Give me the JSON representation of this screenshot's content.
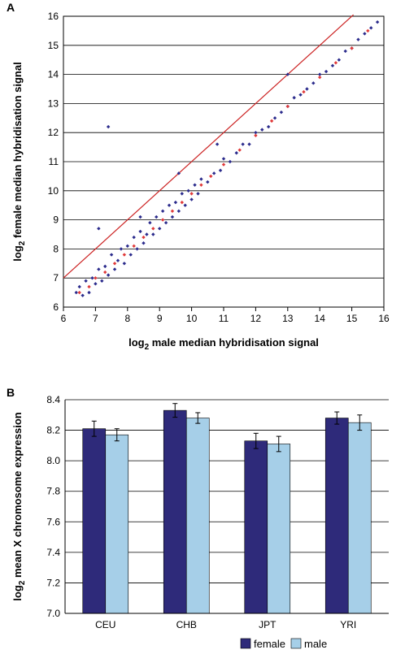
{
  "chart_data": [
    {
      "type": "scatter",
      "panel": "A",
      "xlabel": {
        "main": "log",
        "sub": "2",
        "rest": " male median hybridisation signal"
      },
      "ylabel": {
        "main": "log",
        "sub": "2",
        "rest": " female median hybridisation signal"
      },
      "xlim": [
        6,
        16
      ],
      "ylim": [
        6,
        16
      ],
      "xticks": [
        6,
        7,
        8,
        9,
        10,
        11,
        12,
        13,
        14,
        15,
        16
      ],
      "yticks": [
        6,
        7,
        8,
        9,
        10,
        11,
        12,
        13,
        14,
        15,
        16
      ],
      "grid": true,
      "reference_line": {
        "color": "#cc2222",
        "x": [
          6,
          15.05
        ],
        "y": [
          7,
          16.05
        ]
      },
      "series": [
        {
          "color": "#2b2b8c",
          "x": [
            6.4,
            6.5,
            6.6,
            6.7,
            6.8,
            6.9,
            7.0,
            7.1,
            7.2,
            7.3,
            7.4,
            7.5,
            7.6,
            7.7,
            7.8,
            7.9,
            8.0,
            8.1,
            8.2,
            8.3,
            8.4,
            8.5,
            8.6,
            8.7,
            8.8,
            8.9,
            9.0,
            9.1,
            9.2,
            9.3,
            9.4,
            9.5,
            9.6,
            9.7,
            9.8,
            9.9,
            10.0,
            10.1,
            10.2,
            10.3,
            10.5,
            10.7,
            10.9,
            11.0,
            11.2,
            11.4,
            11.6,
            11.8,
            12.0,
            12.2,
            12.4,
            12.6,
            12.8,
            13.0,
            13.2,
            13.4,
            13.6,
            13.8,
            14.0,
            14.2,
            14.4,
            14.6,
            14.8,
            15.0,
            15.2,
            15.4,
            15.6,
            15.8,
            7.4,
            7.1,
            8.4,
            9.6,
            10.8,
            13.0
          ],
          "values": [
            6.5,
            6.7,
            6.4,
            6.9,
            6.5,
            7.0,
            6.8,
            7.3,
            6.9,
            7.4,
            7.1,
            7.8,
            7.3,
            7.6,
            8.0,
            7.5,
            8.1,
            7.8,
            8.4,
            8.0,
            8.6,
            8.2,
            8.5,
            8.9,
            8.5,
            9.1,
            8.7,
            9.3,
            8.9,
            9.5,
            9.1,
            9.6,
            9.3,
            9.9,
            9.5,
            10.0,
            9.7,
            10.2,
            9.9,
            10.4,
            10.3,
            10.6,
            10.7,
            11.1,
            11.0,
            11.3,
            11.6,
            11.6,
            12.0,
            12.1,
            12.2,
            12.5,
            12.7,
            12.9,
            13.2,
            13.3,
            13.5,
            13.7,
            14.0,
            14.1,
            14.3,
            14.5,
            14.8,
            14.9,
            15.2,
            15.4,
            15.6,
            15.8,
            12.2,
            8.7,
            9.1,
            10.6,
            11.6,
            14.0
          ]
        },
        {
          "color": "#e03a3a",
          "x": [
            6.5,
            6.8,
            7.0,
            7.3,
            7.6,
            7.9,
            8.2,
            8.5,
            8.8,
            9.1,
            9.4,
            9.7,
            10.0,
            10.3,
            10.6,
            11.0,
            11.5,
            12.0,
            12.5,
            13.0,
            13.5,
            14.0,
            14.5,
            15.0,
            15.5
          ],
          "values": [
            6.5,
            6.7,
            7.0,
            7.2,
            7.5,
            7.8,
            8.1,
            8.4,
            8.7,
            9.0,
            9.3,
            9.6,
            9.9,
            10.2,
            10.5,
            10.9,
            11.4,
            11.9,
            12.4,
            12.9,
            13.4,
            13.9,
            14.4,
            14.9,
            15.5
          ]
        }
      ]
    },
    {
      "type": "bar",
      "panel": "B",
      "ylabel": {
        "main": "log",
        "sub": "2",
        "rest": " mean X chromosome expression"
      },
      "categories": [
        "CEU",
        "CHB",
        "JPT",
        "YRI"
      ],
      "ylim": [
        7.0,
        8.4
      ],
      "yticks": [
        {
          "value": 7,
          "label": "7.0"
        },
        7.2,
        7.4,
        7.6,
        7.8,
        {
          "value": 8,
          "label": "8.0"
        },
        8.2,
        8.4
      ],
      "grid": true,
      "legend": "bottom",
      "series": [
        {
          "name": "female",
          "color": "#2e2a7a",
          "values": [
            8.21,
            8.33,
            8.13,
            8.28
          ],
          "errors": [
            0.05,
            0.045,
            0.05,
            0.04
          ]
        },
        {
          "name": "male",
          "color": "#a6cfe8",
          "values": [
            8.17,
            8.28,
            8.11,
            8.25
          ],
          "errors": [
            0.04,
            0.035,
            0.05,
            0.05
          ]
        }
      ]
    }
  ]
}
